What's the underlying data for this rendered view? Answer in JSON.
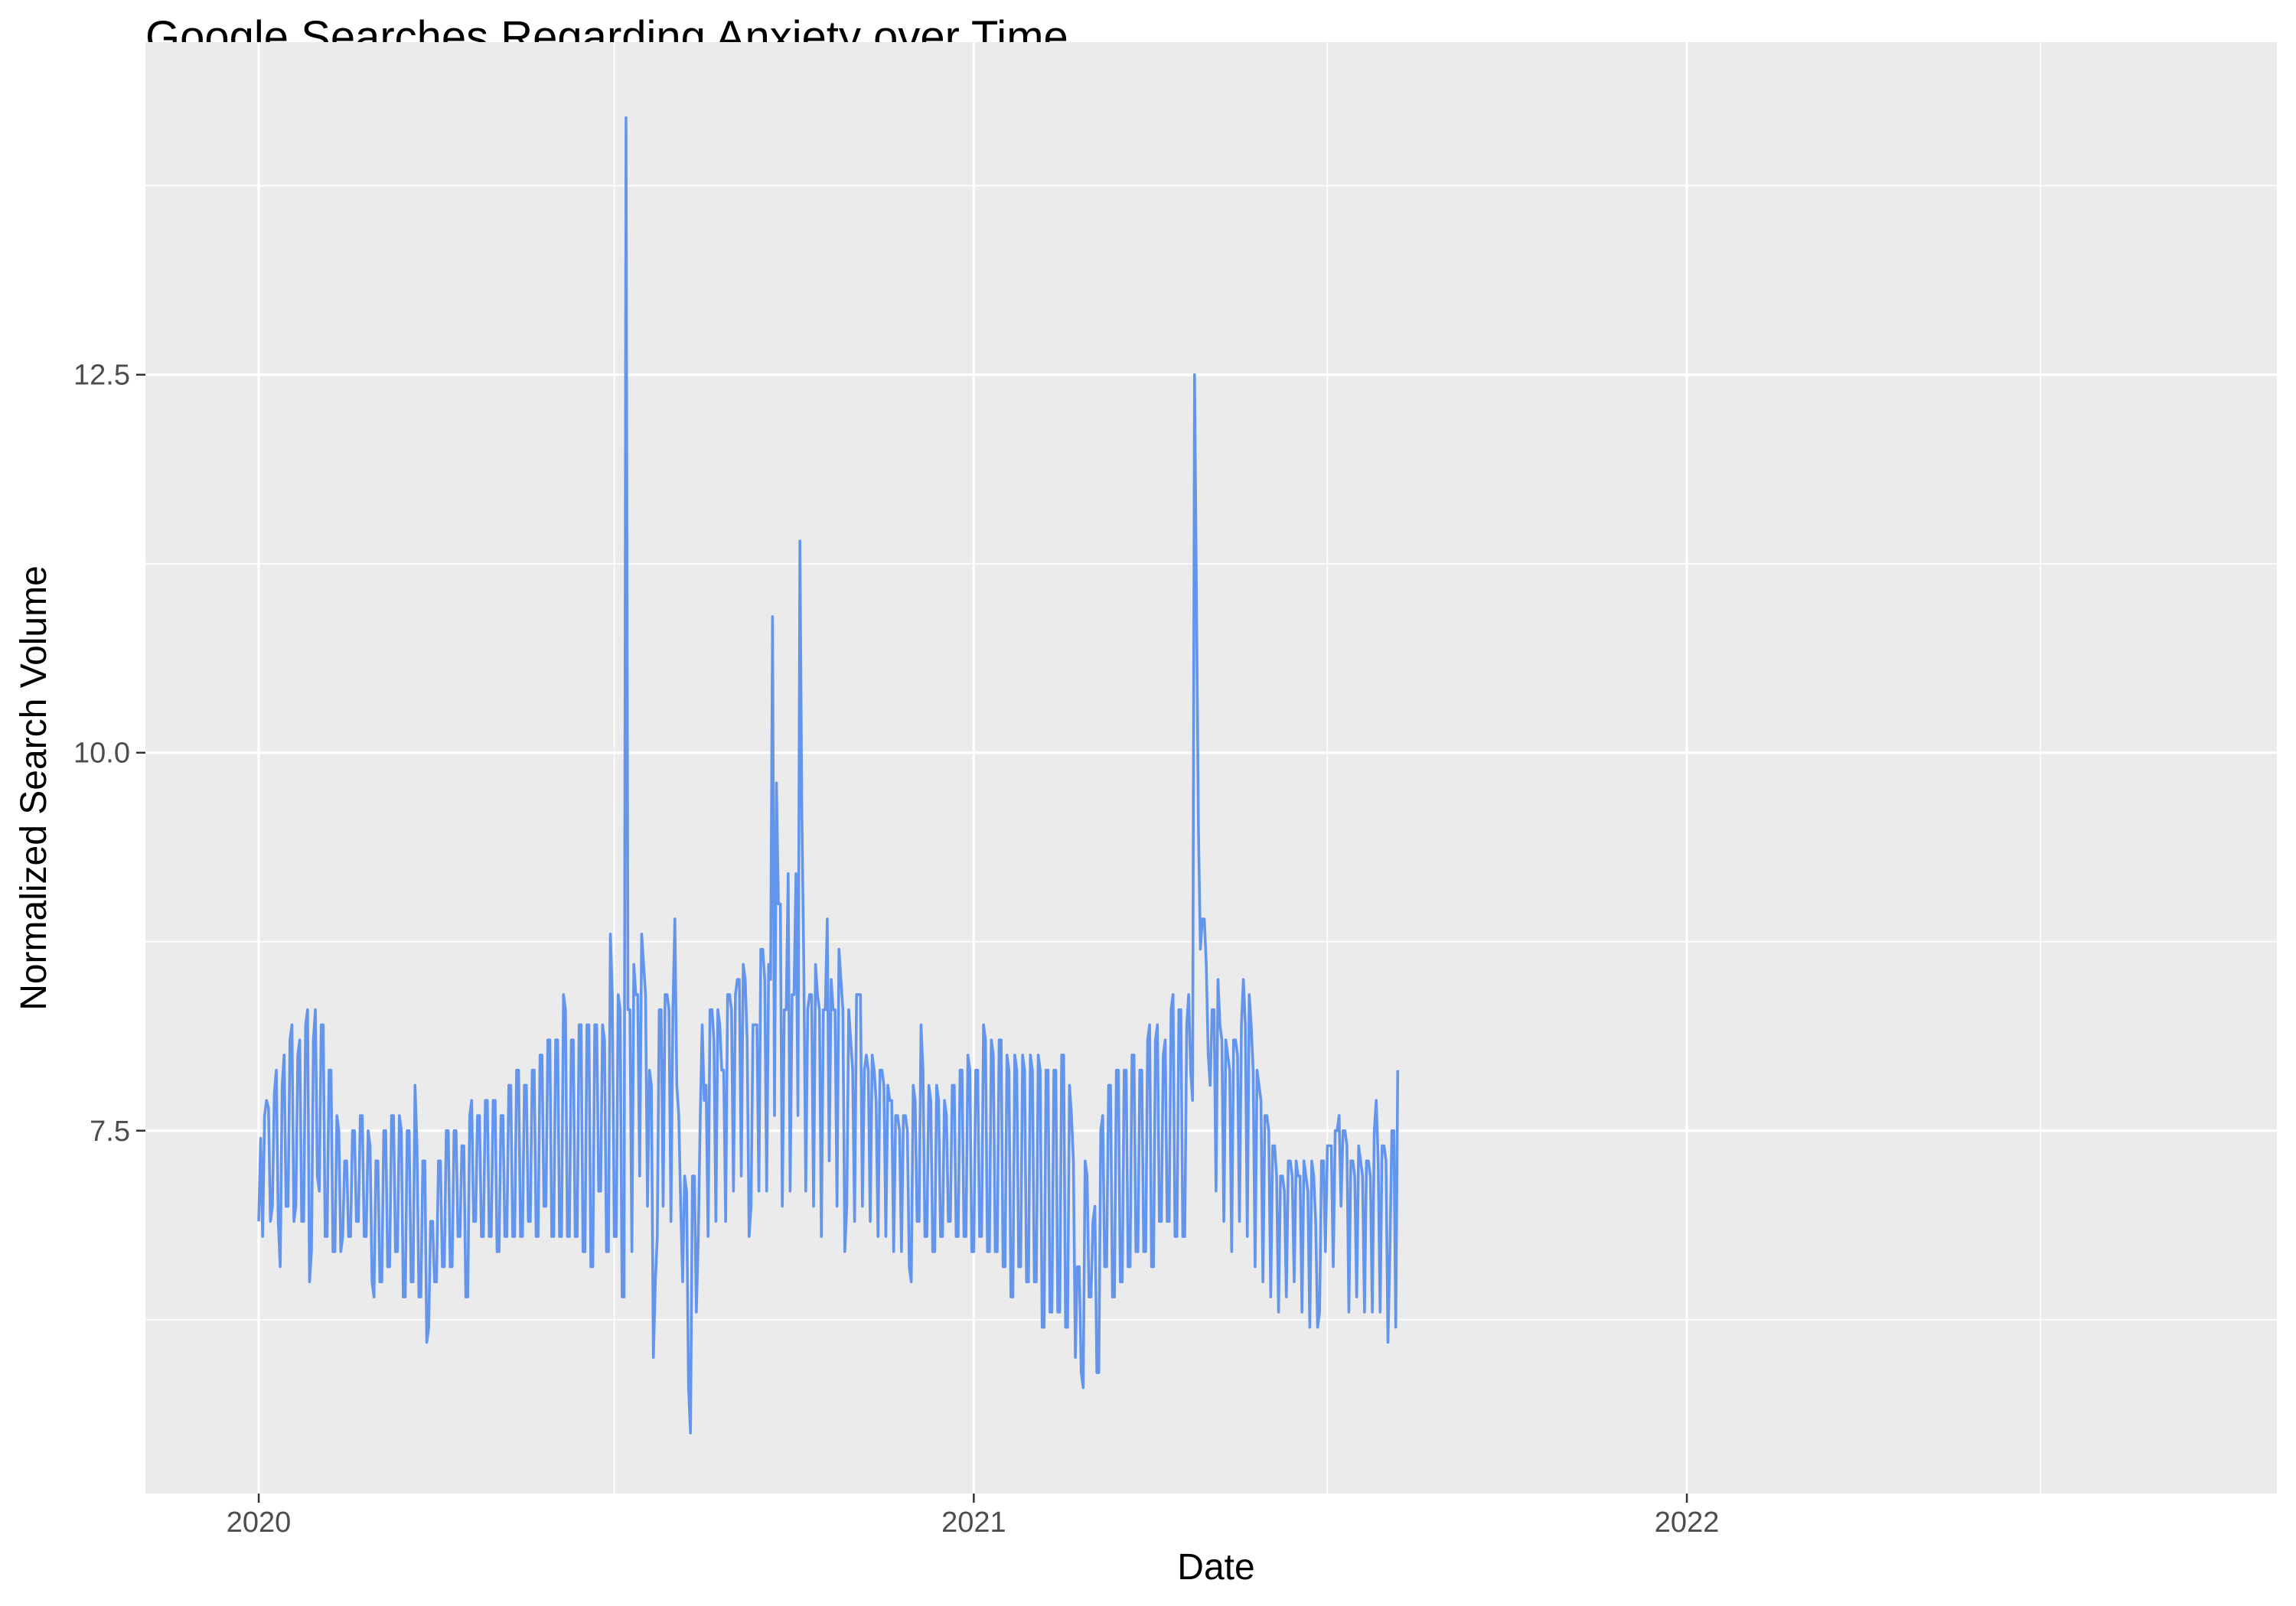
{
  "chart_data": {
    "type": "line",
    "title": "Google Searches Regarding Anxiety over Time",
    "xlabel": "Date",
    "ylabel": "Normalized Search Volume",
    "x_range": [
      "2019-11-04",
      "2022-10-30"
    ],
    "ylim": [
      5.1,
      14.7
    ],
    "x_ticks": [
      {
        "label": "2020",
        "date": "2020-01-01"
      },
      {
        "label": "2021",
        "date": "2021-01-01"
      },
      {
        "label": "2022",
        "date": "2022-01-01"
      }
    ],
    "x_minor_ticks": [
      "2020-07-01",
      "2021-07-01",
      "2022-07-01"
    ],
    "y_ticks": [
      7.5,
      10.0,
      12.5
    ],
    "y_tick_labels": [
      "7.5",
      "10.0",
      "12.5"
    ],
    "y_minor_ticks": [
      6.25,
      8.75,
      11.25,
      13.75
    ],
    "grid": true,
    "legend": "none",
    "line_color": "#6495ED",
    "panel_background": "#EBEBEB",
    "grid_color": "#FFFFFF",
    "series": [
      {
        "start": "2020-01-01",
        "step_days": 1,
        "values": [
          6.9,
          7.45,
          6.8,
          7.6,
          7.7,
          7.65,
          6.9,
          7.0,
          7.75,
          7.9,
          6.9,
          6.6,
          7.8,
          8.0,
          7.0,
          7.0,
          8.1,
          8.2,
          6.9,
          7.0,
          8.0,
          8.1,
          6.9,
          6.9,
          8.2,
          8.3,
          6.5,
          6.7,
          8.1,
          8.3,
          7.2,
          7.1,
          8.2,
          8.2,
          6.8,
          6.8,
          7.9,
          7.9,
          6.7,
          6.7,
          7.6,
          7.5,
          6.7,
          6.8,
          7.3,
          7.3,
          6.8,
          6.8,
          7.5,
          7.5,
          6.9,
          6.9,
          7.6,
          7.6,
          6.8,
          6.8,
          7.5,
          7.4,
          6.5,
          6.4,
          7.3,
          7.3,
          6.5,
          6.5,
          7.5,
          7.5,
          6.6,
          6.6,
          7.6,
          7.6,
          6.7,
          6.7,
          7.6,
          7.5,
          6.4,
          6.4,
          7.5,
          7.5,
          6.5,
          6.5,
          7.8,
          7.4,
          6.4,
          6.4,
          7.3,
          7.3,
          6.1,
          6.2,
          6.9,
          6.9,
          6.5,
          6.5,
          7.3,
          7.3,
          6.6,
          6.6,
          7.5,
          7.5,
          6.6,
          6.6,
          7.5,
          7.5,
          6.8,
          6.8,
          7.4,
          7.4,
          6.4,
          6.4,
          7.6,
          7.7,
          6.9,
          6.9,
          7.6,
          7.6,
          6.8,
          6.8,
          7.7,
          7.7,
          6.8,
          6.8,
          7.7,
          7.7,
          6.7,
          6.7,
          7.6,
          7.6,
          6.8,
          6.8,
          7.8,
          7.8,
          6.8,
          6.8,
          7.9,
          7.9,
          6.8,
          6.8,
          7.8,
          7.8,
          6.9,
          6.9,
          7.9,
          7.9,
          6.8,
          6.8,
          8.0,
          8.0,
          7.0,
          7.0,
          8.1,
          8.1,
          6.8,
          6.8,
          8.1,
          8.1,
          6.8,
          6.8,
          8.4,
          8.3,
          6.8,
          6.8,
          8.1,
          8.1,
          6.8,
          6.8,
          8.2,
          8.2,
          6.7,
          6.7,
          8.2,
          8.2,
          6.6,
          6.6,
          8.2,
          8.2,
          7.1,
          7.1,
          8.2,
          8.1,
          6.7,
          6.7,
          8.8,
          8.4,
          6.8,
          6.8,
          8.4,
          8.3,
          6.4,
          6.4,
          14.2,
          8.3,
          8.3,
          6.7,
          8.6,
          8.4,
          8.4,
          7.2,
          8.8,
          8.6,
          8.4,
          7.0,
          7.9,
          7.8,
          6.0,
          6.5,
          6.8,
          8.3,
          8.3,
          7.0,
          8.4,
          8.4,
          8.3,
          6.9,
          8.3,
          8.9,
          7.8,
          7.6,
          7.0,
          6.5,
          7.2,
          7.1,
          5.8,
          5.5,
          7.2,
          7.2,
          6.3,
          6.8,
          7.6,
          8.2,
          7.7,
          7.8,
          6.8,
          8.3,
          8.3,
          8.1,
          6.9,
          8.3,
          8.2,
          7.9,
          7.9,
          6.9,
          8.4,
          8.4,
          8.3,
          7.1,
          8.4,
          8.5,
          8.5,
          7.2,
          8.6,
          8.5,
          8.1,
          6.8,
          7.0,
          8.2,
          8.2,
          8.2,
          7.1,
          8.7,
          8.7,
          8.5,
          7.1,
          8.6,
          8.5,
          10.9,
          7.6,
          9.8,
          9.0,
          9.0,
          7.0,
          8.3,
          8.3,
          9.2,
          7.1,
          8.4,
          8.4,
          9.2,
          7.6,
          11.4,
          9.6,
          8.6,
          7.1,
          8.3,
          8.4,
          8.4,
          7.0,
          8.6,
          8.4,
          8.3,
          6.8,
          8.3,
          8.3,
          8.9,
          7.3,
          8.5,
          8.3,
          8.3,
          7.0,
          8.7,
          8.5,
          8.3,
          6.7,
          7.0,
          8.3,
          8.1,
          7.9,
          6.9,
          8.4,
          8.4,
          8.4,
          7.0,
          7.9,
          8.0,
          7.9,
          6.9,
          8.0,
          7.9,
          7.7,
          6.8,
          7.9,
          7.9,
          7.8,
          6.8,
          7.8,
          7.7,
          7.7,
          6.7,
          7.6,
          7.6,
          7.5,
          6.7,
          7.6,
          7.6,
          7.5,
          6.6,
          6.5,
          7.8,
          7.7,
          6.9,
          6.9,
          8.2,
          7.9,
          6.8,
          6.8,
          7.8,
          7.7,
          6.7,
          6.7,
          7.8,
          7.7,
          6.8,
          6.8,
          7.7,
          7.6,
          6.9,
          6.9,
          7.8,
          7.8,
          6.8,
          6.8,
          7.9,
          7.9,
          6.8,
          6.8,
          8.0,
          7.9,
          6.7,
          6.7,
          7.9,
          7.9,
          6.8,
          6.8,
          8.2,
          8.1,
          6.7,
          6.7,
          8.1,
          8.0,
          6.7,
          6.7,
          8.1,
          8.1,
          6.6,
          6.6,
          8.0,
          7.9,
          6.4,
          6.4,
          8.0,
          7.9,
          6.6,
          6.6,
          8.0,
          7.9,
          6.5,
          6.5,
          8.0,
          7.9,
          6.5,
          6.5,
          8.0,
          7.9,
          6.2,
          6.2,
          7.9,
          7.9,
          6.3,
          6.3,
          7.9,
          7.9,
          6.3,
          6.3,
          8.0,
          8.0,
          6.2,
          6.2,
          7.8,
          7.6,
          7.3,
          6.0,
          6.6,
          6.6,
          5.9,
          5.8,
          7.3,
          7.2,
          6.4,
          6.4,
          6.9,
          7.0,
          5.9,
          5.9,
          7.5,
          7.6,
          6.6,
          6.6,
          7.8,
          7.8,
          6.4,
          6.4,
          7.9,
          7.9,
          6.5,
          6.5,
          7.9,
          7.9,
          6.6,
          6.6,
          8.0,
          8.0,
          6.7,
          6.7,
          7.9,
          7.9,
          6.7,
          6.7,
          8.1,
          8.2,
          6.6,
          6.6,
          8.1,
          8.2,
          6.9,
          6.9,
          8.0,
          8.1,
          6.9,
          6.9,
          8.3,
          8.4,
          6.8,
          6.8,
          8.3,
          8.3,
          6.8,
          6.8,
          8.2,
          8.4,
          7.9,
          7.7,
          12.5,
          11.0,
          9.5,
          8.7,
          8.9,
          8.9,
          8.6,
          8.0,
          7.8,
          8.3,
          8.3,
          7.1,
          8.5,
          8.2,
          8.1,
          6.9,
          8.1,
          8.0,
          7.9,
          6.7,
          8.1,
          8.1,
          8.0,
          6.9,
          8.2,
          8.5,
          8.2,
          6.8,
          8.4,
          8.2,
          7.9,
          6.6,
          7.9,
          7.8,
          7.7,
          6.5,
          7.6,
          7.6,
          7.5,
          6.4,
          7.4,
          7.4,
          7.2,
          6.3,
          7.2,
          7.2,
          7.1,
          6.4,
          7.3,
          7.3,
          7.2,
          6.5,
          7.3,
          7.2,
          7.2,
          6.3,
          7.3,
          7.2,
          7.1,
          6.2,
          7.3,
          7.2,
          6.9,
          6.2,
          6.3,
          7.3,
          7.3,
          6.7,
          7.4,
          7.4,
          7.4,
          6.6,
          7.5,
          7.5,
          7.6,
          7.0,
          7.5,
          7.5,
          7.4,
          6.3,
          7.3,
          7.3,
          7.2,
          6.4,
          7.4,
          7.3,
          7.2,
          6.3,
          7.3,
          7.3,
          7.2,
          6.3,
          7.5,
          7.7,
          7.3,
          6.3,
          7.4,
          7.4,
          7.3,
          6.1,
          6.7,
          7.5,
          7.5,
          6.2,
          7.9
        ]
      }
    ]
  }
}
